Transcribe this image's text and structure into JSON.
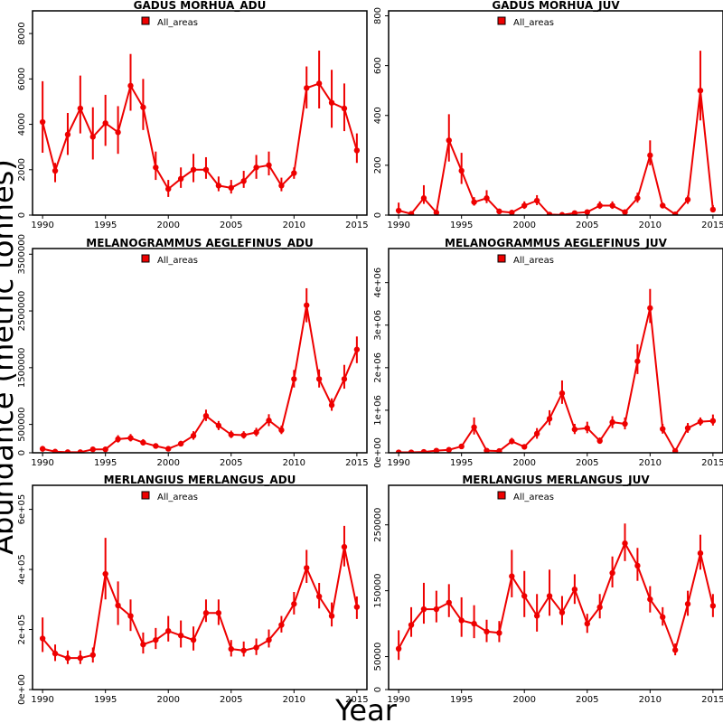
{
  "figure": {
    "xlabel": "Year",
    "ylabel": "Abundance (metric tonnes)"
  },
  "chart_data": [
    {
      "type": "line",
      "title": "GADUS MORHUA_ADU",
      "legend": "All_areas",
      "legend_position": "top-left",
      "color": "#ee0000",
      "xlim": [
        1989.2,
        2015.8
      ],
      "ylim": [
        0,
        9000
      ],
      "yticks": [
        0,
        2000,
        4000,
        6000,
        8000
      ],
      "ytick_labels": [
        "0",
        "2000",
        "4000",
        "6000",
        "8000"
      ],
      "xticks": [
        1990,
        1995,
        2000,
        2005,
        2010,
        2015
      ],
      "xtick_labels": [
        "1990",
        "1995",
        "2000",
        "2005",
        "2010",
        "2015"
      ],
      "x": [
        1990,
        1991,
        1992,
        1993,
        1994,
        1995,
        1996,
        1997,
        1998,
        1999,
        2000,
        2001,
        2002,
        2003,
        2004,
        2005,
        2006,
        2007,
        2008,
        2009,
        2010,
        2011,
        2012,
        2013,
        2014,
        2015
      ],
      "y": [
        4100,
        1950,
        3550,
        4700,
        3450,
        4050,
        3650,
        5700,
        4750,
        2100,
        1150,
        1600,
        2000,
        2000,
        1300,
        1200,
        1500,
        2100,
        2200,
        1300,
        1850,
        5600,
        5800,
        4950,
        4700,
        2850
      ],
      "lower": [
        2750,
        1450,
        2650,
        3600,
        2450,
        3050,
        2700,
        4600,
        3750,
        1550,
        800,
        1200,
        1450,
        1600,
        1050,
        950,
        1200,
        1600,
        1750,
        1050,
        1600,
        4700,
        4700,
        3850,
        3700,
        2300
      ],
      "upper": [
        5900,
        2300,
        4500,
        6150,
        4750,
        5300,
        4800,
        7100,
        6000,
        2800,
        1550,
        2100,
        2700,
        2550,
        1700,
        1550,
        1950,
        2650,
        2800,
        1650,
        2100,
        6550,
        7250,
        6400,
        5800,
        3600
      ]
    },
    {
      "type": "line",
      "title": "GADUS MORHUA_JUV",
      "legend": "All_areas",
      "legend_position": "top-left",
      "color": "#ee0000",
      "xlim": [
        1989.2,
        2015.8
      ],
      "ylim": [
        0,
        820
      ],
      "yticks": [
        0,
        200,
        400,
        600,
        800
      ],
      "ytick_labels": [
        "0",
        "200",
        "400",
        "600",
        "800"
      ],
      "xticks": [
        1990,
        1995,
        2000,
        2005,
        2010,
        2015
      ],
      "xtick_labels": [
        "1990",
        "1995",
        "2000",
        "2005",
        "2010",
        "2015"
      ],
      "x": [
        1990,
        1991,
        1992,
        1993,
        1994,
        1995,
        1996,
        1997,
        1998,
        1999,
        2000,
        2001,
        2002,
        2003,
        2004,
        2005,
        2006,
        2007,
        2008,
        2009,
        2010,
        2011,
        2012,
        2013,
        2014,
        2015
      ],
      "y": [
        18,
        5,
        68,
        10,
        300,
        178,
        52,
        68,
        15,
        10,
        38,
        58,
        2,
        1,
        8,
        12,
        38,
        38,
        12,
        68,
        240,
        38,
        3,
        62,
        500,
        22
      ],
      "lower": [
        5,
        2,
        45,
        5,
        215,
        125,
        38,
        48,
        10,
        6,
        25,
        40,
        1,
        0,
        5,
        8,
        25,
        25,
        8,
        50,
        200,
        28,
        1,
        45,
        380,
        12
      ],
      "upper": [
        50,
        10,
        120,
        18,
        405,
        250,
        72,
        100,
        22,
        15,
        55,
        80,
        4,
        2,
        12,
        18,
        55,
        55,
        18,
        90,
        300,
        50,
        6,
        78,
        660,
        40
      ]
    },
    {
      "type": "line",
      "title": "MELANOGRAMMUS AEGLEFINUS_ADU",
      "legend": "All_areas",
      "legend_position": "top-left",
      "color": "#ee0000",
      "xlim": [
        1989.2,
        2015.8
      ],
      "ylim": [
        0,
        3600000
      ],
      "yticks": [
        0,
        500000,
        1500000,
        2500000,
        3500000
      ],
      "ytick_labels": [
        "0",
        "500000",
        "1500000",
        "2500000",
        "3500000"
      ],
      "xticks": [
        1990,
        1995,
        2000,
        2005,
        2010,
        2015
      ],
      "xtick_labels": [
        "1990",
        "1995",
        "2000",
        "2005",
        "2010",
        "2015"
      ],
      "x": [
        1990,
        1991,
        1992,
        1993,
        1994,
        1995,
        1996,
        1997,
        1998,
        1999,
        2000,
        2001,
        2002,
        2003,
        2004,
        2005,
        2006,
        2007,
        2008,
        2009,
        2010,
        2011,
        2012,
        2013,
        2014,
        2015
      ],
      "y": [
        70000,
        20000,
        10000,
        10000,
        60000,
        60000,
        240000,
        260000,
        180000,
        120000,
        70000,
        160000,
        300000,
        650000,
        480000,
        320000,
        310000,
        360000,
        570000,
        400000,
        1300000,
        2600000,
        1300000,
        840000,
        1300000,
        1820000
      ],
      "lower": [
        20000,
        5000,
        3000,
        3000,
        30000,
        30000,
        180000,
        200000,
        130000,
        90000,
        50000,
        120000,
        230000,
        560000,
        400000,
        260000,
        250000,
        290000,
        470000,
        330000,
        1150000,
        2300000,
        1150000,
        740000,
        1130000,
        1580000
      ],
      "upper": [
        120000,
        40000,
        20000,
        20000,
        100000,
        100000,
        310000,
        330000,
        240000,
        160000,
        100000,
        210000,
        380000,
        760000,
        560000,
        390000,
        380000,
        440000,
        680000,
        480000,
        1460000,
        2900000,
        1470000,
        960000,
        1550000,
        2050000
      ]
    },
    {
      "type": "line",
      "title": "MELANOGRAMMUS AEGLEFINUS_JUV",
      "legend": "All_areas",
      "legend_position": "top-left",
      "color": "#ee0000",
      "xlim": [
        1989.2,
        2015.8
      ],
      "ylim": [
        0,
        4800000
      ],
      "yticks": [
        0,
        1000000,
        2000000,
        3000000,
        4000000
      ],
      "ytick_labels": [
        "0e+00",
        "1e+06",
        "2e+06",
        "3e+06",
        "4e+06"
      ],
      "xticks": [
        1990,
        1995,
        2000,
        2005,
        2010,
        2015
      ],
      "xtick_labels": [
        "1990",
        "1995",
        "2000",
        "2005",
        "2010",
        "2015"
      ],
      "x": [
        1990,
        1991,
        1992,
        1993,
        1994,
        1995,
        1996,
        1997,
        1998,
        1999,
        2000,
        2001,
        2002,
        2003,
        2004,
        2005,
        2006,
        2007,
        2008,
        2009,
        2010,
        2011,
        2012,
        2013,
        2014,
        2015
      ],
      "y": [
        10000,
        10000,
        20000,
        50000,
        70000,
        150000,
        600000,
        50000,
        40000,
        270000,
        140000,
        450000,
        800000,
        1400000,
        550000,
        580000,
        280000,
        720000,
        680000,
        2150000,
        3400000,
        560000,
        40000,
        580000,
        730000,
        750000
      ],
      "lower": [
        0,
        0,
        5000,
        30000,
        40000,
        100000,
        430000,
        20000,
        10000,
        200000,
        100000,
        330000,
        650000,
        1150000,
        440000,
        460000,
        210000,
        580000,
        550000,
        1850000,
        3050000,
        450000,
        10000,
        470000,
        640000,
        640000
      ],
      "upper": [
        25000,
        25000,
        40000,
        80000,
        100000,
        210000,
        830000,
        90000,
        80000,
        350000,
        200000,
        580000,
        1000000,
        1700000,
        680000,
        730000,
        360000,
        860000,
        830000,
        2550000,
        3850000,
        680000,
        80000,
        700000,
        830000,
        900000
      ]
    },
    {
      "type": "line",
      "title": "MERLANGIUS MERLANGUS_ADU",
      "legend": "All_areas",
      "legend_position": "top-left",
      "color": "#ee0000",
      "xlim": [
        1989.2,
        2015.8
      ],
      "ylim": [
        0,
        680000
      ],
      "yticks": [
        0,
        200000,
        400000,
        600000
      ],
      "ytick_labels": [
        "0e+00",
        "2e+05",
        "4e+05",
        "6e+05"
      ],
      "xticks": [
        1990,
        1995,
        2000,
        2005,
        2010,
        2015
      ],
      "xtick_labels": [
        "1990",
        "1995",
        "2000",
        "2005",
        "2010",
        "2015"
      ],
      "x": [
        1990,
        1991,
        1992,
        1993,
        1994,
        1995,
        1996,
        1997,
        1998,
        1999,
        2000,
        2001,
        2002,
        2003,
        2004,
        2005,
        2006,
        2007,
        2008,
        2009,
        2010,
        2011,
        2012,
        2013,
        2014,
        2015
      ],
      "y": [
        170000,
        120000,
        105000,
        105000,
        115000,
        385000,
        280000,
        245000,
        150000,
        165000,
        195000,
        180000,
        165000,
        255000,
        255000,
        135000,
        130000,
        140000,
        165000,
        215000,
        285000,
        405000,
        310000,
        245000,
        475000,
        275000
      ],
      "lower": [
        125000,
        95000,
        85000,
        85000,
        90000,
        300000,
        215000,
        195000,
        120000,
        135000,
        160000,
        140000,
        130000,
        225000,
        215000,
        110000,
        110000,
        115000,
        140000,
        190000,
        250000,
        355000,
        270000,
        210000,
        410000,
        235000
      ],
      "upper": [
        240000,
        150000,
        130000,
        130000,
        140000,
        505000,
        360000,
        300000,
        190000,
        205000,
        245000,
        230000,
        210000,
        300000,
        300000,
        165000,
        160000,
        170000,
        200000,
        245000,
        325000,
        465000,
        355000,
        290000,
        545000,
        310000
      ]
    },
    {
      "type": "line",
      "title": "MERLANGIUS MERLANGUS_JUV",
      "legend": "All_areas",
      "legend_position": "top-left",
      "color": "#ee0000",
      "xlim": [
        1989.2,
        2015.8
      ],
      "ylim": [
        0,
        310000
      ],
      "yticks": [
        0,
        50000,
        150000,
        250000
      ],
      "ytick_labels": [
        "0",
        "50000",
        "150000",
        "250000"
      ],
      "xticks": [
        1990,
        1995,
        2000,
        2005,
        2010,
        2015
      ],
      "xtick_labels": [
        "1990",
        "1995",
        "2000",
        "2005",
        "2010",
        "2015"
      ],
      "x": [
        1990,
        1991,
        1992,
        1993,
        1994,
        1995,
        1996,
        1997,
        1998,
        1999,
        2000,
        2001,
        2002,
        2003,
        2004,
        2005,
        2006,
        2007,
        2008,
        2009,
        2010,
        2011,
        2012,
        2013,
        2014,
        2015
      ],
      "y": [
        62000,
        98000,
        122000,
        122000,
        132000,
        105000,
        100000,
        88000,
        86000,
        172000,
        142000,
        112000,
        142000,
        117000,
        152000,
        100000,
        125000,
        177000,
        222000,
        188000,
        137000,
        110000,
        60000,
        130000,
        207000,
        127000
      ],
      "lower": [
        45000,
        80000,
        100000,
        102000,
        110000,
        80000,
        78000,
        72000,
        72000,
        140000,
        110000,
        88000,
        112000,
        98000,
        130000,
        86000,
        108000,
        155000,
        195000,
        165000,
        117000,
        97000,
        52000,
        112000,
        182000,
        110000
      ],
      "upper": [
        90000,
        125000,
        162000,
        150000,
        160000,
        140000,
        128000,
        106000,
        104000,
        212000,
        180000,
        145000,
        182000,
        142000,
        175000,
        115000,
        145000,
        202000,
        252000,
        215000,
        157000,
        125000,
        70000,
        150000,
        235000,
        145000
      ]
    }
  ]
}
